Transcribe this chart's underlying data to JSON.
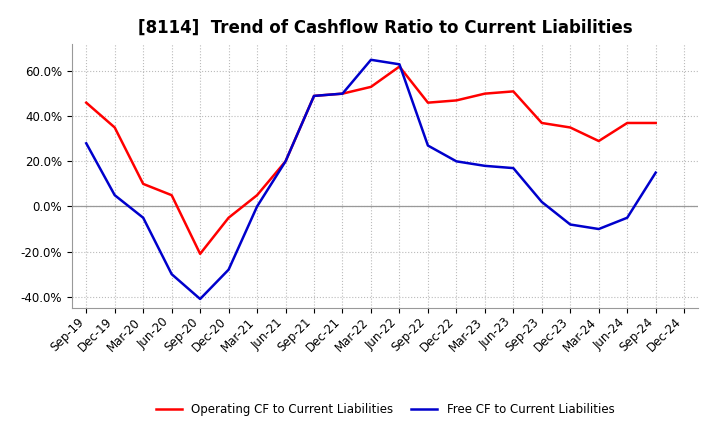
{
  "title": "[8114]  Trend of Cashflow Ratio to Current Liabilities",
  "x_labels": [
    "Sep-19",
    "Dec-19",
    "Mar-20",
    "Jun-20",
    "Sep-20",
    "Dec-20",
    "Mar-21",
    "Jun-21",
    "Sep-21",
    "Dec-21",
    "Mar-22",
    "Jun-22",
    "Sep-22",
    "Dec-22",
    "Mar-23",
    "Jun-23",
    "Sep-23",
    "Dec-23",
    "Mar-24",
    "Jun-24",
    "Sep-24",
    "Dec-24"
  ],
  "operating_cf": [
    46,
    35,
    10,
    5,
    -21,
    -5,
    5,
    20,
    49,
    50,
    53,
    62,
    46,
    47,
    50,
    51,
    37,
    35,
    29,
    37,
    37,
    null
  ],
  "free_cf": [
    28,
    5,
    -5,
    -30,
    -41,
    -28,
    0,
    20,
    49,
    50,
    65,
    63,
    27,
    20,
    18,
    17,
    2,
    -8,
    -10,
    -5,
    15,
    null
  ],
  "operating_color": "#ff0000",
  "free_color": "#0000cc",
  "ylim": [
    -45,
    72
  ],
  "yticks": [
    -40,
    -20,
    0,
    20,
    40,
    60
  ],
  "grid_color": "#bbbbbb",
  "bg_color": "#ffffff",
  "legend_op": "Operating CF to Current Liabilities",
  "legend_free": "Free CF to Current Liabilities",
  "title_fontsize": 12,
  "tick_fontsize": 8.5,
  "linewidth": 1.8
}
